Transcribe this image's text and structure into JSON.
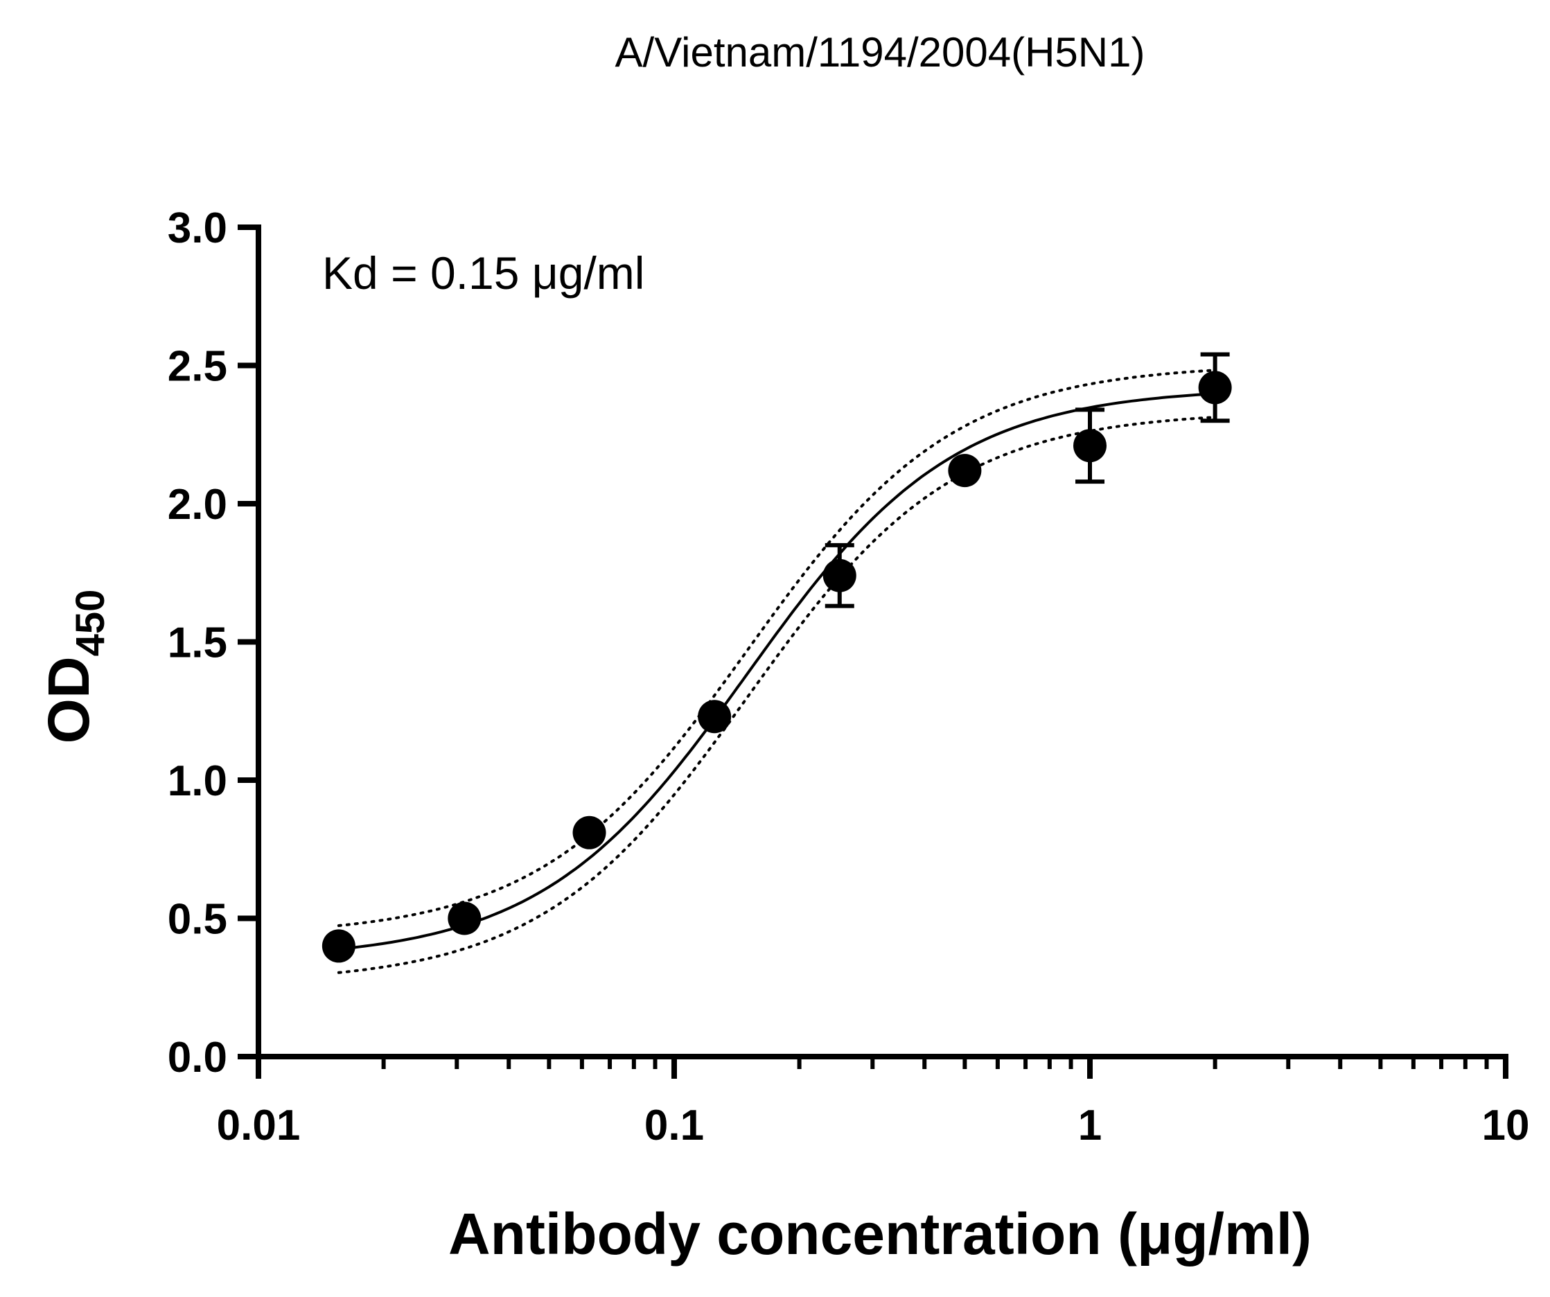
{
  "chart_data": {
    "type": "scatter",
    "title": "A/Vietnam/1194/2004(H5N1)",
    "annotation": "Kd = 0.15 μg/ml",
    "xlabel": "Antibody concentration (μg/ml)",
    "ylabel_main": "OD",
    "ylabel_sub": "450",
    "x_scale": "log",
    "xlim": [
      0.01,
      10
    ],
    "ylim": [
      0,
      3.0
    ],
    "x_ticks": [
      {
        "value": 0.01,
        "label": "0.01"
      },
      {
        "value": 0.1,
        "label": "0.1"
      },
      {
        "value": 1,
        "label": "1"
      },
      {
        "value": 10,
        "label": "10"
      }
    ],
    "y_ticks": [
      {
        "value": 0.0,
        "label": "0.0"
      },
      {
        "value": 0.5,
        "label": "0.5"
      },
      {
        "value": 1.0,
        "label": "1.0"
      },
      {
        "value": 1.5,
        "label": "1.5"
      },
      {
        "value": 2.0,
        "label": "2.0"
      },
      {
        "value": 2.5,
        "label": "2.5"
      },
      {
        "value": 3.0,
        "label": "3.0"
      }
    ],
    "grid": false,
    "points": [
      {
        "x": 0.0156,
        "y": 0.4,
        "err": 0
      },
      {
        "x": 0.0313,
        "y": 0.5,
        "err": 0
      },
      {
        "x": 0.0625,
        "y": 0.81,
        "err": 0
      },
      {
        "x": 0.125,
        "y": 1.23,
        "err": 0
      },
      {
        "x": 0.25,
        "y": 1.74,
        "err": 0.11
      },
      {
        "x": 0.5,
        "y": 2.12,
        "err": 0
      },
      {
        "x": 1.0,
        "y": 2.21,
        "err": 0.13
      },
      {
        "x": 2.0,
        "y": 2.42,
        "err": 0.12
      }
    ],
    "fit": {
      "bottom": 0.35,
      "top": 2.42,
      "ec50": 0.15,
      "hill": 1.75,
      "ci_half_width": 0.085
    },
    "colors": {
      "points": "#000000",
      "fit_line": "#000000",
      "ci_band": "#000000"
    }
  }
}
